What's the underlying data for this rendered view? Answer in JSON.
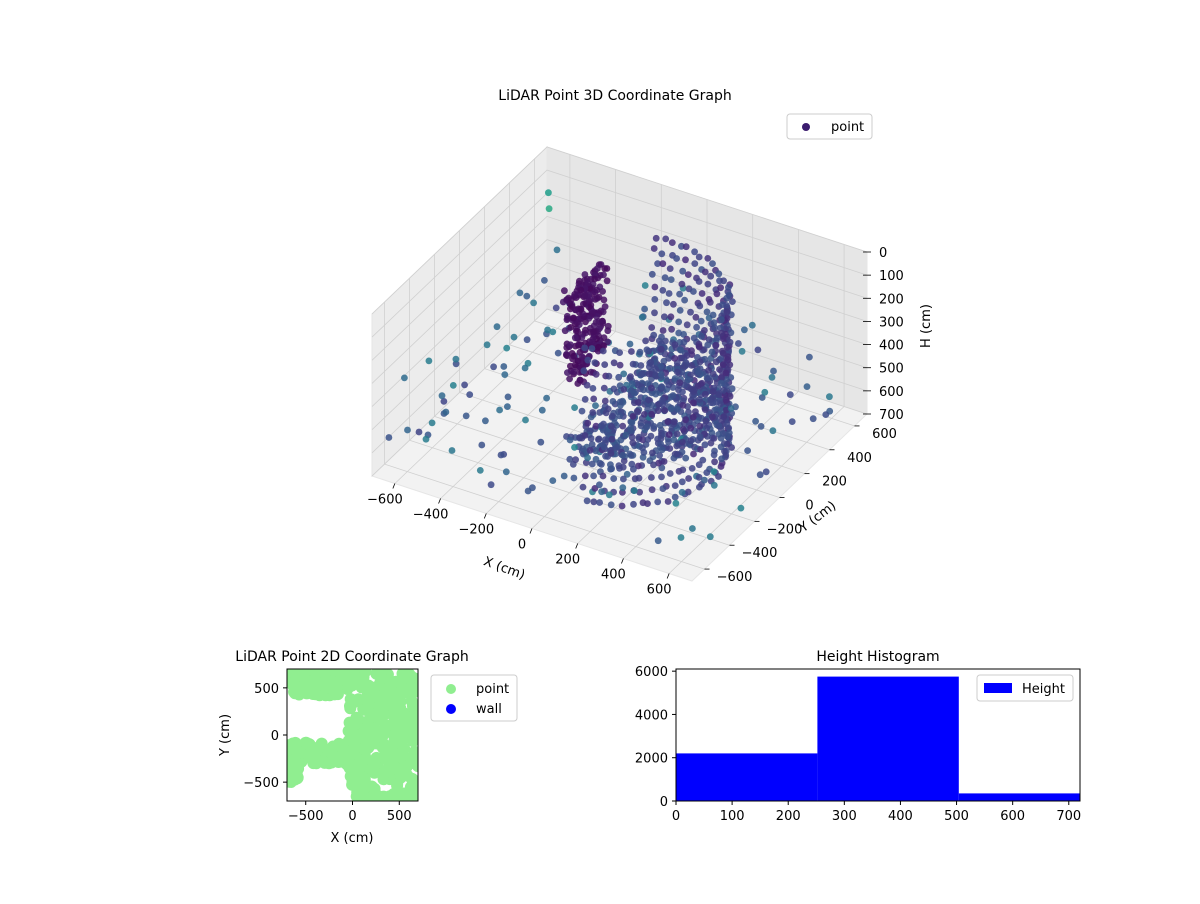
{
  "chart_data": [
    {
      "type": "scatter3d",
      "title": "LiDAR Point 3D Coordinate Graph",
      "xlabel": "X (cm)",
      "ylabel": "Y (cm)",
      "zlabel": "H (cm)",
      "xlim": [
        -700,
        700
      ],
      "ylim": [
        -700,
        700
      ],
      "zlim": [
        0,
        700
      ],
      "z_inverted": true,
      "xticks": [
        -600,
        -400,
        -200,
        0,
        200,
        400,
        600
      ],
      "yticks": [
        -600,
        -400,
        -200,
        0,
        200,
        400,
        600
      ],
      "zticks": [
        0,
        100,
        200,
        300,
        400,
        500,
        600,
        700
      ],
      "legend": [
        "point"
      ],
      "legend_position": "top-right",
      "colormap": "viridis",
      "grid": true,
      "series": [
        {
          "name": "point",
          "shape": "half-ring wall around origin with inner floor, plus cluster near X=-200 and scattered outliers",
          "wall_radius_cm": 420,
          "wall_height_range_cm": [
            0,
            700
          ]
        }
      ]
    },
    {
      "type": "scatter",
      "title": "LiDAR Point 2D Coordinate Graph",
      "xlabel": "X (cm)",
      "ylabel": "Y (cm)",
      "xlim": [
        -700,
        700
      ],
      "ylim": [
        -700,
        700
      ],
      "xticks": [
        -500,
        0,
        500
      ],
      "yticks": [
        -500,
        0,
        500
      ],
      "legend": [
        "point",
        "wall"
      ],
      "legend_position": "outside-right",
      "series": [
        {
          "name": "point",
          "color": "#90ee90"
        },
        {
          "name": "wall",
          "color": "#0000ff"
        }
      ]
    },
    {
      "type": "bar",
      "title": "Height Histogram",
      "legend": [
        "Height"
      ],
      "legend_position": "top-right",
      "bins": [
        {
          "start": 0,
          "end": 252,
          "count": 2200
        },
        {
          "start": 252,
          "end": 504,
          "count": 5750
        },
        {
          "start": 504,
          "end": 720,
          "count": 350
        }
      ],
      "xlim": [
        0,
        720
      ],
      "ylim": [
        0,
        6100
      ],
      "xticks": [
        0,
        100,
        200,
        300,
        400,
        500,
        600,
        700
      ],
      "yticks": [
        0,
        2000,
        4000,
        6000
      ],
      "color": "#0000ff"
    }
  ]
}
